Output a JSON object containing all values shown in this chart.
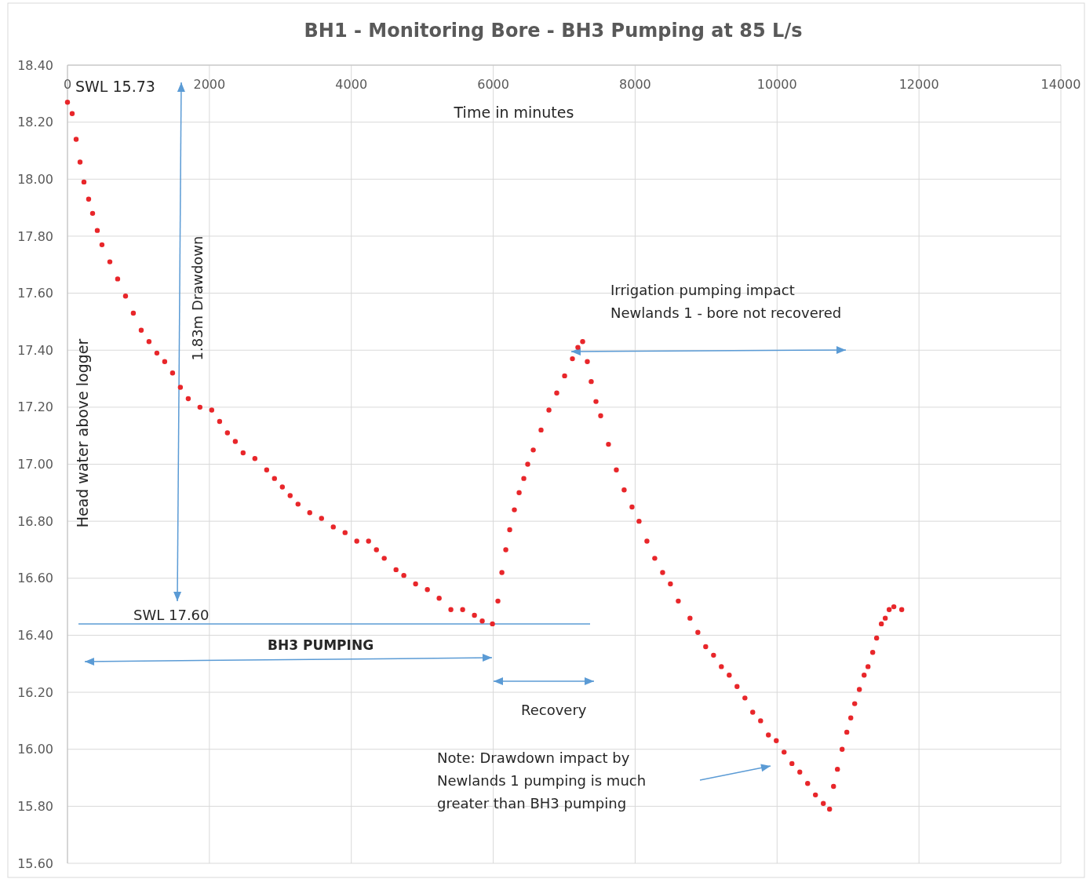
{
  "chart_data": {
    "type": "scatter",
    "title": "BH1 - Monitoring Bore - BH3 Pumping at 85 L/s",
    "xlabel": "Time in minutes",
    "ylabel": "Head water above logger",
    "xlim": [
      0,
      14000
    ],
    "xticks": [
      0,
      2000,
      4000,
      6000,
      8000,
      10000,
      12000,
      14000
    ],
    "ylim": [
      15.6,
      18.4
    ],
    "yticks": [
      {
        "value": 15.6,
        "label": "15.60"
      },
      {
        "value": 15.8,
        "label": "15.80"
      },
      {
        "value": 16,
        "label": "16.00"
      },
      {
        "value": 16.2,
        "label": "16.20"
      },
      {
        "value": 16.4,
        "label": "16.40"
      },
      {
        "value": 16.6,
        "label": "16.60"
      },
      {
        "value": 16.8,
        "label": "16.80"
      },
      {
        "value": 17,
        "label": "17.00"
      },
      {
        "value": 17.2,
        "label": "17.20"
      },
      {
        "value": 17.4,
        "label": "17.40"
      },
      {
        "value": 17.6,
        "label": "17.60"
      },
      {
        "value": 17.8,
        "label": "17.80"
      },
      {
        "value": 18,
        "label": "18.00"
      },
      {
        "value": 18.2,
        "label": "18.20"
      },
      {
        "value": 18.4,
        "label": "18.40"
      }
    ],
    "grid": true,
    "marker": "circle",
    "series": [
      {
        "color": "#e8262a",
        "x": [
          0,
          66,
          122,
          177,
          232,
          298,
          354,
          420,
          486,
          597,
          707,
          818,
          928,
          1039,
          1149,
          1260,
          1370,
          1481,
          1591,
          1702,
          1867,
          2033,
          2144,
          2254,
          2365,
          2475,
          2641,
          2807,
          2917,
          3028,
          3138,
          3249,
          3414,
          3580,
          3746,
          3912,
          4077,
          4243,
          4354,
          4464,
          4630,
          4740,
          4906,
          5072,
          5238,
          5403,
          5569,
          5735,
          5845,
          5989,
          6066,
          6122,
          6177,
          6232,
          6298,
          6365,
          6431,
          6486,
          6564,
          6674,
          6785,
          6895,
          7006,
          7116,
          7193,
          7260,
          7326,
          7381,
          7448,
          7514,
          7624,
          7735,
          7845,
          7956,
          8055,
          8166,
          8276,
          8387,
          8497,
          8608,
          8773,
          8884,
          8994,
          9105,
          9215,
          9326,
          9436,
          9547,
          9657,
          9768,
          9878,
          9989,
          10099,
          10210,
          10320,
          10431,
          10541,
          10652,
          10740,
          10796,
          10851,
          10917,
          10983,
          11039,
          11094,
          11160,
          11227,
          11282,
          11348,
          11403,
          11470,
          11525,
          11580,
          11646,
          11757
        ],
        "values": [
          18.27,
          18.23,
          18.14,
          18.06,
          17.99,
          17.93,
          17.88,
          17.82,
          17.77,
          17.71,
          17.65,
          17.59,
          17.53,
          17.47,
          17.43,
          17.39,
          17.36,
          17.32,
          17.27,
          17.23,
          17.2,
          17.19,
          17.15,
          17.11,
          17.08,
          17.04,
          17.02,
          16.98,
          16.95,
          16.92,
          16.89,
          16.86,
          16.83,
          16.81,
          16.78,
          16.76,
          16.73,
          16.73,
          16.7,
          16.67,
          16.63,
          16.61,
          16.58,
          16.56,
          16.53,
          16.49,
          16.49,
          16.47,
          16.45,
          16.44,
          16.52,
          16.62,
          16.7,
          16.77,
          16.84,
          16.9,
          16.95,
          17,
          17.05,
          17.12,
          17.19,
          17.25,
          17.31,
          17.37,
          17.41,
          17.43,
          17.36,
          17.29,
          17.22,
          17.17,
          17.07,
          16.98,
          16.91,
          16.85,
          16.8,
          16.73,
          16.67,
          16.62,
          16.58,
          16.52,
          16.46,
          16.41,
          16.36,
          16.33,
          16.29,
          16.26,
          16.22,
          16.18,
          16.13,
          16.1,
          16.05,
          16.03,
          15.99,
          15.95,
          15.92,
          15.88,
          15.84,
          15.81,
          15.79,
          15.87,
          15.93,
          16,
          16.06,
          16.11,
          16.16,
          16.21,
          16.26,
          16.29,
          16.34,
          16.39,
          16.44,
          16.46,
          16.49,
          16.5,
          16.49
        ]
      }
    ],
    "ref_lines": [
      {
        "axis": "y",
        "value": 16.44,
        "label": "SWL 17.60",
        "color": "#5b9bd5"
      }
    ],
    "annotations": [
      "SWL 15.73",
      "1.83m Drawdown",
      "Irrigation pumping impact\nNewlands 1 - bore not recovered",
      "BH3 PUMPING",
      "Recovery",
      "Note: Drawdown impact by\nNewlands 1 pumping is much\ngreater than BH3 pumping"
    ]
  }
}
